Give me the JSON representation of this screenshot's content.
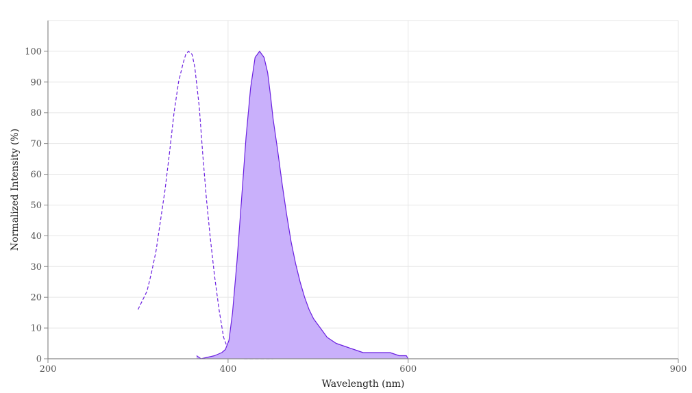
{
  "chart_data": {
    "type": "area",
    "title": "",
    "xlabel": "Wavelength (nm)",
    "ylabel": "Normalized Intensity (%)",
    "xlim": [
      200,
      900
    ],
    "ylim": [
      0,
      110
    ],
    "x_ticks": [
      200,
      400,
      600,
      900
    ],
    "y_ticks": [
      0,
      10,
      20,
      30,
      40,
      50,
      60,
      70,
      80,
      90,
      100
    ],
    "grid": true,
    "legend": "none",
    "colors": {
      "line": "#6a1fe0",
      "fill": "#c9b0fb",
      "grid": "#e6e6e6",
      "axis": "#888888"
    },
    "series": [
      {
        "style": "dashed",
        "fill": false,
        "x": [
          300,
          305,
          310,
          315,
          320,
          325,
          330,
          335,
          340,
          345,
          350,
          353,
          356,
          360,
          363,
          368,
          372,
          376,
          380,
          385,
          390,
          395,
          400,
          405,
          410,
          418,
          425,
          440,
          450
        ],
        "y": [
          16,
          19,
          22,
          28,
          35,
          45,
          55,
          67,
          80,
          90,
          96,
          99,
          100,
          99,
          95,
          82,
          66,
          52,
          40,
          27,
          16,
          7,
          3,
          2,
          1,
          0,
          0,
          0,
          0
        ]
      },
      {
        "style": "solid",
        "fill": true,
        "x": [
          365,
          370,
          385,
          393,
          397,
          401,
          405,
          410,
          415,
          420,
          425,
          430,
          435,
          440,
          444,
          447,
          450,
          455,
          460,
          465,
          470,
          475,
          480,
          485,
          490,
          495,
          500,
          505,
          510,
          520,
          530,
          540,
          550,
          560,
          570,
          580,
          590,
          598,
          600
        ],
        "y": [
          1,
          0,
          1,
          2,
          3,
          6,
          15,
          32,
          52,
          72,
          88,
          98,
          100,
          98,
          93,
          86,
          78,
          68,
          57,
          47,
          38,
          31,
          25,
          20,
          16,
          13,
          11,
          9,
          7,
          5,
          4,
          3,
          2,
          2,
          2,
          2,
          1,
          1,
          0
        ]
      }
    ]
  }
}
